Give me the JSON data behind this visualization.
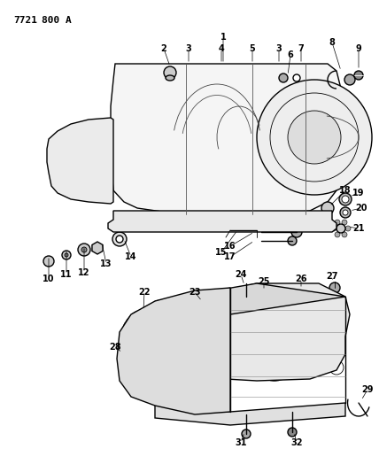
{
  "title": "7721 800 A",
  "bg": "#ffffff",
  "lc": "#000000",
  "fig_w": 4.28,
  "fig_h": 5.33,
  "dpi": 100,
  "lfs": 6.5
}
